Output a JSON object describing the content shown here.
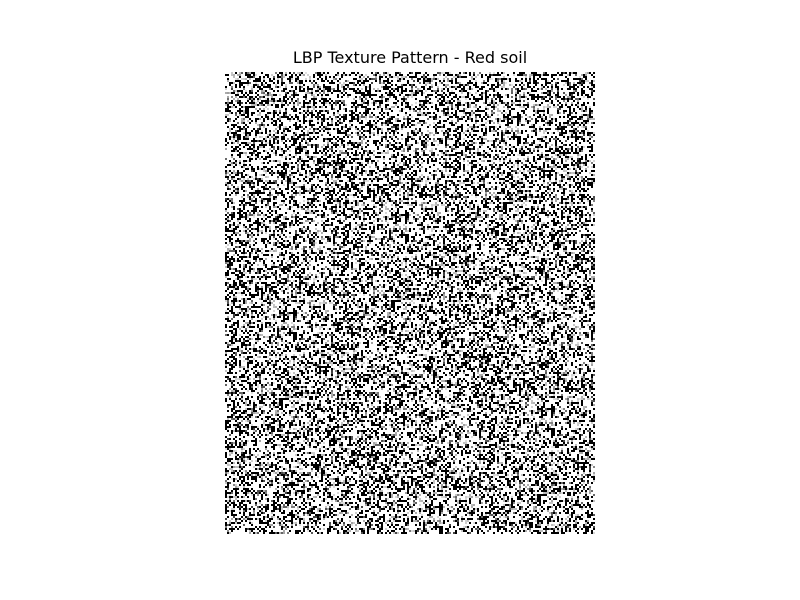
{
  "title": "LBP Texture Pattern - Red soil",
  "image": {
    "kind": "grayscale-texture",
    "description_colors": {
      "background": "#ffffff",
      "foreground": "#000000"
    }
  }
}
